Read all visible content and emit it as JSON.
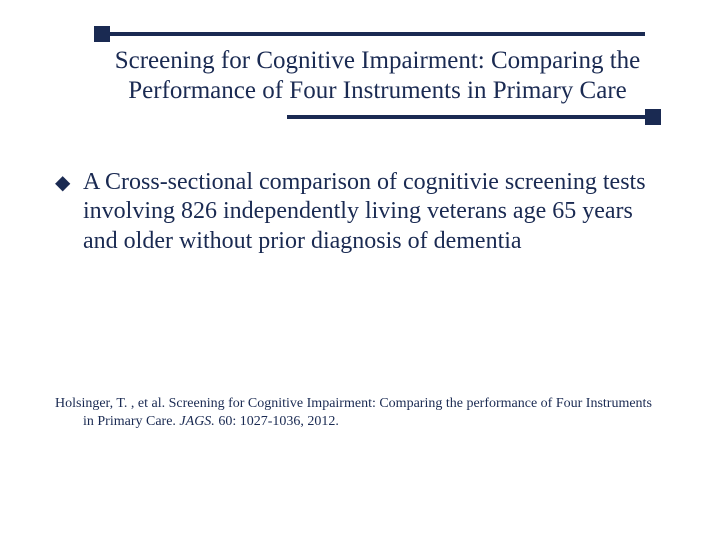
{
  "colors": {
    "text": "#1a2a52",
    "rule": "#1a2a52",
    "background": "#ffffff"
  },
  "layout": {
    "slide_width": 720,
    "slide_height": 540,
    "title_fontsize": 25,
    "body_fontsize": 24,
    "citation_fontsize": 14,
    "rule_thickness": 4,
    "endcap_size": 16,
    "bottom_rule_left_pct": 33,
    "bottom_rule_width_pct": 67
  },
  "title": "Screening for Cognitive Impairment: Comparing the Performance of Four Instruments in Primary Care",
  "bullet_marker": "◆",
  "bullets": [
    "A Cross-sectional comparison of cognitivie screening tests involving 826 independently living veterans age 65 years and older without prior diagnosis of dementia"
  ],
  "citation": {
    "prefix": "Holsinger, T. , et al. Screening for Cognitive Impairment: Comparing the performance of Four Instruments in Primary Care. ",
    "journal": "JAGS.",
    "suffix": " 60: 1027-1036, 2012."
  }
}
